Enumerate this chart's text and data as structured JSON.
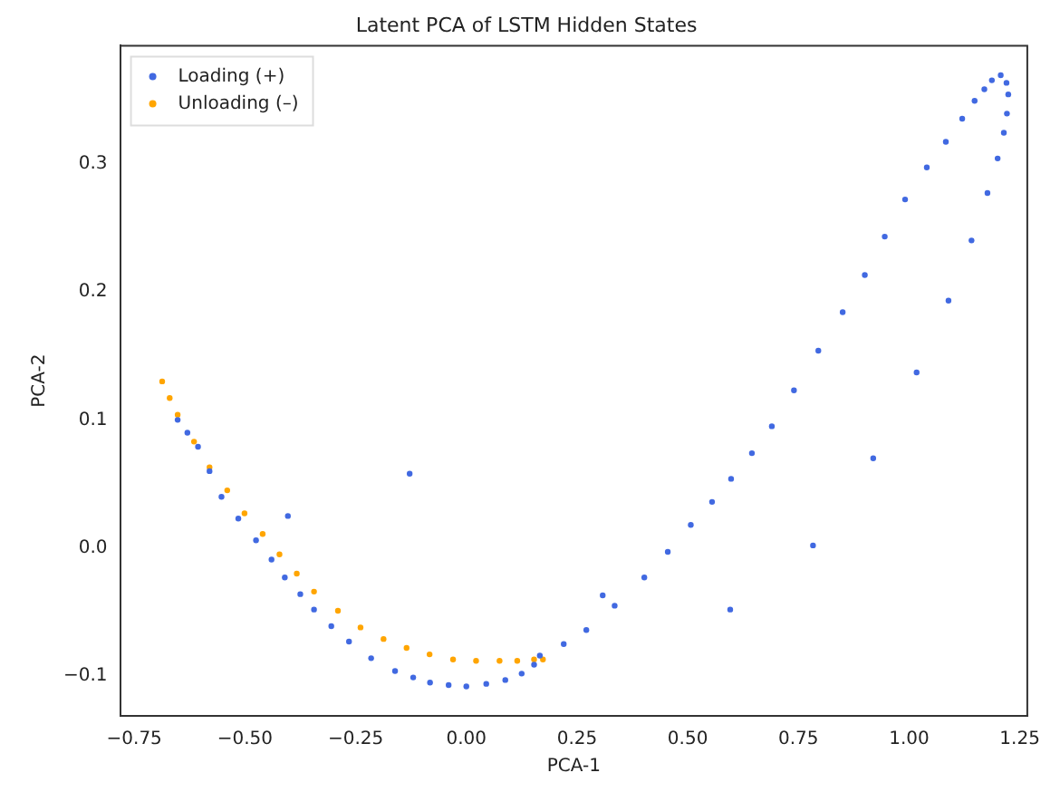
{
  "chart_data": {
    "type": "scatter",
    "title": "Latent PCA of LSTM Hidden States",
    "xlabel": "PCA-1",
    "ylabel": "PCA-2",
    "xlim": [
      -0.782,
      1.267
    ],
    "ylim": [
      -0.131,
      0.392
    ],
    "xticks": [
      {
        "value": -0.75,
        "label": "−0.75"
      },
      {
        "value": -0.5,
        "label": "−0.50"
      },
      {
        "value": -0.25,
        "label": "−0.25"
      },
      {
        "value": 0,
        "label": "0.00"
      },
      {
        "value": 0.25,
        "label": "0.25"
      },
      {
        "value": 0.5,
        "label": "0.50"
      },
      {
        "value": 0.75,
        "label": "0.75"
      },
      {
        "value": 1,
        "label": "1.00"
      },
      {
        "value": 1.25,
        "label": "1.25"
      }
    ],
    "yticks": [
      {
        "value": -0.1,
        "label": "−0.1"
      },
      {
        "value": 0,
        "label": "0.0"
      },
      {
        "value": 0.1,
        "label": "0.1"
      },
      {
        "value": 0.2,
        "label": "0.2"
      },
      {
        "value": 0.3,
        "label": "0.3"
      }
    ],
    "grid": false,
    "legend": "top left",
    "marker": "circle",
    "series": [
      {
        "name": "Loading (+)",
        "color": "#4169e1",
        "x": [
          -0.652,
          -0.63,
          -0.606,
          -0.58,
          -0.553,
          -0.515,
          -0.475,
          -0.44,
          -0.41,
          -0.375,
          -0.344,
          -0.305,
          -0.265,
          -0.215,
          -0.161,
          -0.12,
          -0.082,
          -0.04,
          0,
          0.045,
          0.088,
          0.125,
          0.153,
          0.166,
          0.22,
          0.271,
          0.335,
          0.402,
          0.455,
          0.507,
          0.555,
          0.598,
          0.645,
          0.69,
          0.74,
          0.795,
          0.85,
          0.9,
          0.945,
          0.991,
          1.04,
          1.083,
          1.12,
          1.148,
          1.17,
          1.187,
          1.207,
          1.22,
          1.224,
          1.221,
          1.214,
          1.2,
          1.177,
          1.141,
          1.089,
          1.017,
          0.919,
          0.783,
          0.596,
          0.308,
          -0.128,
          -0.403
        ],
        "values": [
          0.1,
          0.09,
          0.079,
          0.06,
          0.04,
          0.023,
          0.006,
          -0.009,
          -0.023,
          -0.036,
          -0.048,
          -0.061,
          -0.073,
          -0.086,
          -0.096,
          -0.101,
          -0.105,
          -0.107,
          -0.108,
          -0.106,
          -0.103,
          -0.098,
          -0.091,
          -0.084,
          -0.075,
          -0.064,
          -0.045,
          -0.023,
          -0.003,
          0.018,
          0.036,
          0.054,
          0.074,
          0.095,
          0.123,
          0.154,
          0.184,
          0.213,
          0.243,
          0.272,
          0.297,
          0.317,
          0.335,
          0.349,
          0.358,
          0.365,
          0.369,
          0.363,
          0.354,
          0.339,
          0.324,
          0.304,
          0.277,
          0.24,
          0.193,
          0.137,
          0.07,
          0.002,
          -0.048,
          -0.037,
          0.058,
          0.025
        ]
      },
      {
        "name": "Unloading (–)",
        "color": "#ffa500",
        "x": [
          -0.687,
          -0.67,
          -0.652,
          -0.615,
          -0.58,
          -0.54,
          -0.501,
          -0.46,
          -0.422,
          -0.383,
          -0.344,
          -0.29,
          -0.239,
          -0.187,
          -0.135,
          -0.083,
          -0.03,
          0.022,
          0.075,
          0.115,
          0.153,
          0.173
        ],
        "values": [
          0.13,
          0.117,
          0.104,
          0.083,
          0.063,
          0.045,
          0.027,
          0.011,
          -0.005,
          -0.02,
          -0.034,
          -0.049,
          -0.062,
          -0.071,
          -0.078,
          -0.083,
          -0.087,
          -0.088,
          -0.088,
          -0.088,
          -0.087,
          -0.087
        ]
      }
    ]
  }
}
